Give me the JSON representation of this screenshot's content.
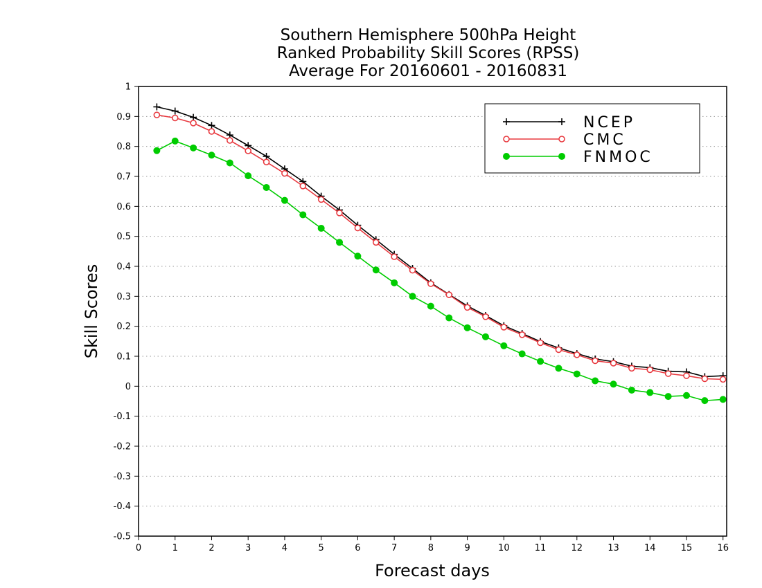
{
  "chart_data": {
    "type": "line",
    "title": [
      "Southern Hemisphere 500hPa Height",
      "Ranked Probability Skill Scores (RPSS)",
      "Average For 20160601 - 20160831"
    ],
    "xlabel": "Forecast days",
    "ylabel": "Skill Scores",
    "xlim": [
      0,
      16.1
    ],
    "ylim": [
      -0.5,
      1
    ],
    "xticks": [
      "0",
      "1",
      "2",
      "3",
      "4",
      "5",
      "6",
      "7",
      "8",
      "9",
      "10",
      "11",
      "12",
      "13",
      "14",
      "15",
      "16"
    ],
    "yticks": [
      "1",
      "0.9",
      "0.8",
      "0.7",
      "0.6",
      "0.5",
      "0.4",
      "0.3",
      "0.2",
      "0.1",
      "0",
      "-0.1",
      "-0.2",
      "-0.3",
      "-0.4",
      "-0.5"
    ],
    "grid": "horizontal dotted",
    "legend_position": "top-right",
    "x": [
      0.5,
      1,
      1.5,
      2,
      2.5,
      3,
      3.5,
      4,
      4.5,
      5,
      5.5,
      6,
      6.5,
      7,
      7.5,
      8,
      8.5,
      9,
      9.5,
      10,
      10.5,
      11,
      11.5,
      12,
      12.5,
      13,
      13.5,
      14,
      14.5,
      15,
      15.5,
      16
    ],
    "series": [
      {
        "name": "NCEP",
        "color": "#000000",
        "marker": "plus",
        "values": [
          0.932,
          0.918,
          0.897,
          0.87,
          0.838,
          0.803,
          0.767,
          0.725,
          0.683,
          0.634,
          0.588,
          0.537,
          0.489,
          0.44,
          0.393,
          0.345,
          0.306,
          0.268,
          0.236,
          0.202,
          0.176,
          0.149,
          0.128,
          0.109,
          0.091,
          0.082,
          0.067,
          0.062,
          0.05,
          0.048,
          0.032,
          0.035
        ]
      },
      {
        "name": "CMC",
        "color": "#e8393f",
        "marker": "open-circle",
        "values": [
          0.905,
          0.895,
          0.878,
          0.85,
          0.82,
          0.785,
          0.748,
          0.71,
          0.668,
          0.623,
          0.578,
          0.528,
          0.48,
          0.432,
          0.387,
          0.342,
          0.305,
          0.263,
          0.232,
          0.197,
          0.172,
          0.145,
          0.122,
          0.105,
          0.085,
          0.077,
          0.06,
          0.055,
          0.042,
          0.035,
          0.025,
          0.023
        ]
      },
      {
        "name": "FNMOC",
        "color": "#00cc00",
        "marker": "filled-circle",
        "values": [
          0.786,
          0.818,
          0.795,
          0.771,
          0.745,
          0.702,
          0.663,
          0.62,
          0.572,
          0.527,
          0.48,
          0.434,
          0.388,
          0.345,
          0.3,
          0.267,
          0.228,
          0.195,
          0.165,
          0.135,
          0.108,
          0.083,
          0.06,
          0.041,
          0.018,
          0.007,
          -0.013,
          -0.021,
          -0.034,
          -0.031,
          -0.048,
          -0.044
        ]
      }
    ]
  }
}
